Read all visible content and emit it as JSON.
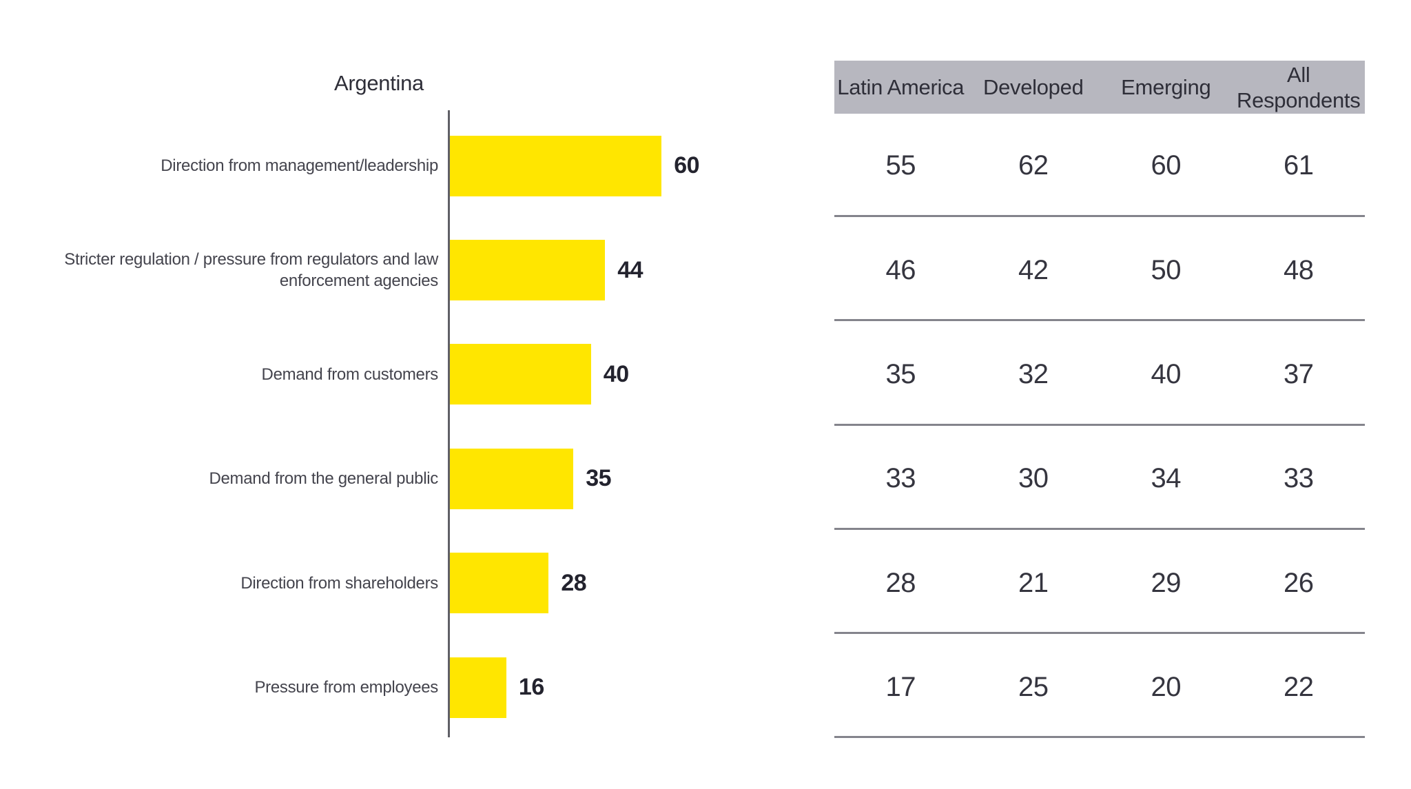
{
  "chart_data": {
    "type": "bar",
    "orientation": "horizontal",
    "title": "Argentina",
    "categories": [
      "Direction from management/leadership",
      "Stricter regulation / pressure from regulators and law enforcement agencies",
      "Demand from customers",
      "Demand from the general public",
      "Direction from shareholders",
      "Pressure from employees"
    ],
    "values": [
      60,
      44,
      40,
      35,
      28,
      16
    ],
    "xlim": [
      0,
      70
    ],
    "grid": false,
    "value_label_position": "right-of-bar",
    "bar_color": "#FFE600",
    "axis_color": "#5f5f66"
  },
  "table": {
    "columns": [
      "Latin America",
      "Developed",
      "Emerging",
      "All Respondents"
    ],
    "rows": [
      [
        55,
        62,
        60,
        61
      ],
      [
        46,
        42,
        50,
        48
      ],
      [
        35,
        32,
        40,
        37
      ],
      [
        33,
        30,
        34,
        33
      ],
      [
        28,
        21,
        29,
        26
      ],
      [
        17,
        25,
        20,
        22
      ]
    ],
    "header_bg": "#b7b7bf",
    "divider_color": "#84848c"
  }
}
